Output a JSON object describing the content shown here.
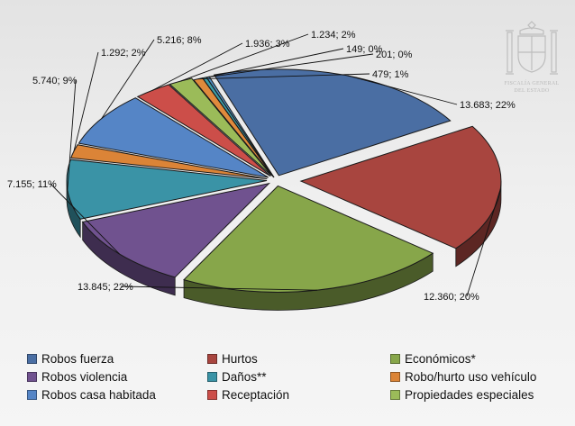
{
  "chart_data": {
    "type": "pie",
    "title": "",
    "series": [
      {
        "name": "Robos fuerza",
        "value": 13683,
        "label": "13.683; 22%",
        "color": "#4a6ea3"
      },
      {
        "name": "Hurtos",
        "value": 12360,
        "label": "12.360; 20%",
        "color": "#a8453f"
      },
      {
        "name": "Económicos*",
        "value": 13845,
        "label": "13.845; 22%",
        "color": "#87a64a"
      },
      {
        "name": "Robos violencia",
        "value": 7155,
        "label": "7.155; 11%",
        "color": "#70528f"
      },
      {
        "name": "Daños**",
        "value": 5740,
        "label": "5.740; 9%",
        "color": "#3a93a6"
      },
      {
        "name": "Robo/hurto uso vehículo",
        "value": 1292,
        "label": "1.292; 2%",
        "color": "#db8437"
      },
      {
        "name": "Robos casa habitada",
        "value": 5216,
        "label": "5.216; 8%",
        "color": "#5585c6"
      },
      {
        "name": "Receptación",
        "value": 1936,
        "label": "1.936; 3%",
        "color": "#cc4e49"
      },
      {
        "name": "Propiedades especiales",
        "value": 1234,
        "label": "1.234; 2%",
        "color": "#9bbb59"
      },
      {
        "name": "",
        "value": 149,
        "label": "149; 0%",
        "color": "#4f8fc2"
      },
      {
        "name": "",
        "value": 201,
        "label": "201; 0%",
        "color": "#3c9ea8"
      },
      {
        "name": "",
        "value": 479,
        "label": "479; 1%",
        "color": "#e08a3c"
      }
    ],
    "legend_position": "bottom",
    "legend": [
      {
        "label": "Robos fuerza",
        "color": "#4a6ea3"
      },
      {
        "label": "Hurtos",
        "color": "#a8453f"
      },
      {
        "label": "Económicos*",
        "color": "#87a64a"
      },
      {
        "label": "Robos violencia",
        "color": "#70528f"
      },
      {
        "label": "Daños**",
        "color": "#3a93a6"
      },
      {
        "label": "Robo/hurto uso vehículo",
        "color": "#db8437"
      },
      {
        "label": "Robos casa habitada",
        "color": "#5585c6"
      },
      {
        "label": "Receptación",
        "color": "#cc4e49"
      },
      {
        "label": "Propiedades especiales",
        "color": "#9bbb59"
      }
    ]
  },
  "emblem": {
    "line1": "FISCALÍA GENERAL",
    "line2": "DEL ESTADO"
  }
}
